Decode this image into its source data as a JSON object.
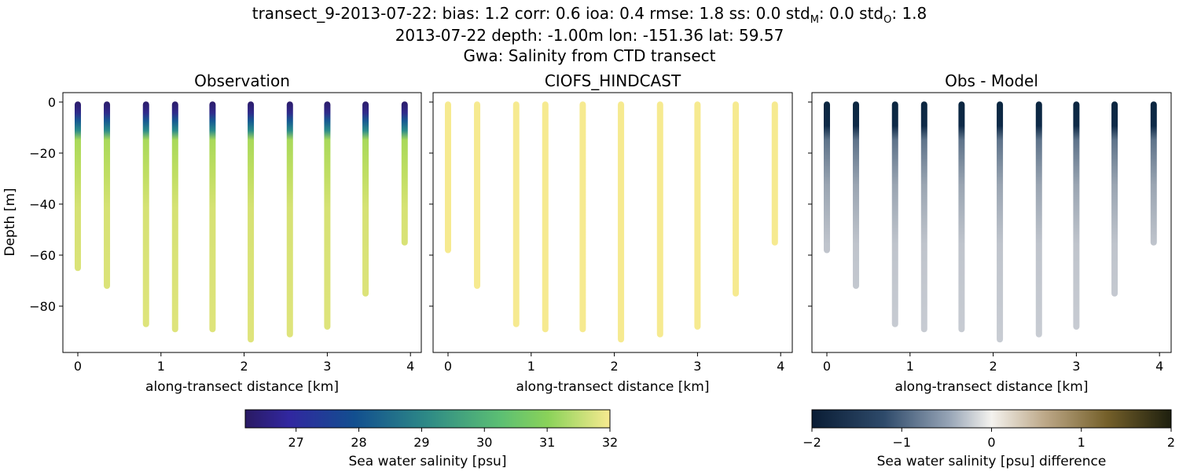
{
  "title": {
    "line1": "transect_9-2013-07-22: bias: 1.2  corr: 0.6  ioa: 0.4  rmse: 1.8  ss: 0.0  std",
    "line1_sub_m": "M",
    "line1_mid": ": 0.0  std",
    "line1_sub_o": "O",
    "line1_end": ": 1.8",
    "line2": "2013-07-22 depth: -1.00m lon: -151.36 lat: 59.57",
    "line3": "Gwa: Salinity from CTD transect"
  },
  "chart_data": [
    {
      "type": "scatter",
      "title": "Observation",
      "xlabel": "along-transect distance [km]",
      "ylabel": "Depth [m]",
      "xlim": [
        -0.18,
        4.13
      ],
      "ylim": [
        -97,
        4
      ],
      "xticks": [
        "0",
        "1",
        "2",
        "3",
        "4"
      ],
      "yticks": [
        "0",
        "−20",
        "−40",
        "−60",
        "−80"
      ],
      "stations_km": [
        0,
        0.35,
        0.82,
        1.17,
        1.62,
        2.08,
        2.55,
        3.0,
        3.46,
        3.93
      ],
      "max_depth": [
        -65,
        -72,
        -87,
        -89,
        -89,
        -93,
        -91,
        -88,
        -75,
        -55
      ],
      "profile": {
        "depth": [
          -1,
          -5,
          -10,
          -14,
          -25,
          -40,
          -90
        ],
        "salinity": [
          26.3,
          27.5,
          28.8,
          30.6,
          31.0,
          31.3,
          31.4
        ]
      }
    },
    {
      "type": "scatter",
      "title": "CIOFS_HINDCAST",
      "xlabel": "along-transect distance [km]",
      "xticks": [
        "0",
        "1",
        "2",
        "3",
        "4"
      ],
      "stations_km": [
        0,
        0.35,
        0.82,
        1.17,
        1.62,
        2.08,
        2.55,
        3.0,
        3.46,
        3.93
      ],
      "max_depth": [
        -58,
        -72,
        -87,
        -89,
        -89,
        -93,
        -91,
        -88,
        -75,
        -55
      ],
      "profile": {
        "depth": [
          -1,
          -90
        ],
        "salinity": [
          31.9,
          31.9
        ]
      }
    },
    {
      "type": "scatter",
      "title": "Obs - Model",
      "xlabel": "along-transect distance [km]",
      "xticks": [
        "0",
        "1",
        "2",
        "3",
        "4"
      ],
      "stations_km": [
        0,
        0.35,
        0.82,
        1.17,
        1.62,
        2.08,
        2.55,
        3.0,
        3.46,
        3.93
      ],
      "max_depth": [
        -58,
        -72,
        -87,
        -89,
        -89,
        -93,
        -91,
        -88,
        -75,
        -55
      ],
      "profile": {
        "depth": [
          -1,
          -10,
          -14,
          -30,
          -50,
          -90
        ],
        "difference": [
          -5.6,
          -2.2,
          -1.2,
          -0.9,
          -0.6,
          -0.5
        ]
      }
    }
  ],
  "colorbars": [
    {
      "label": "Sea water salinity [psu]",
      "range": [
        26.19,
        32
      ],
      "ticks": [
        "27",
        "28",
        "29",
        "30",
        "31",
        "32"
      ],
      "tick_values": [
        27,
        28,
        29,
        30,
        31,
        32
      ]
    },
    {
      "label": "Sea water salinity [psu] difference",
      "range": [
        -2,
        2
      ],
      "ticks": [
        "−2",
        "−1",
        "0",
        "1",
        "2"
      ],
      "tick_values": [
        -2,
        -1,
        0,
        1,
        2
      ]
    }
  ]
}
